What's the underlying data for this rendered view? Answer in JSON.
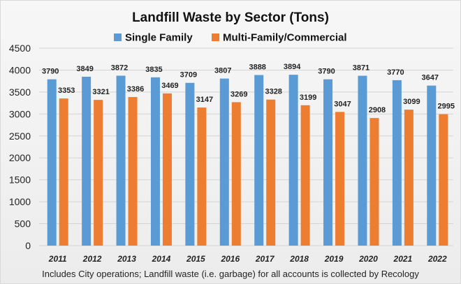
{
  "chart_data": {
    "type": "bar",
    "title": "Landfill Waste by Sector (Tons)",
    "categories": [
      "2011",
      "2012",
      "2013",
      "2014",
      "2015",
      "2016",
      "2017",
      "2018",
      "2019",
      "2020",
      "2021",
      "2022"
    ],
    "series": [
      {
        "name": "Single Family",
        "color": "#5b9bd5",
        "values": [
          3790,
          3849,
          3872,
          3835,
          3709,
          3807,
          3888,
          3894,
          3790,
          3871,
          3770,
          3647
        ]
      },
      {
        "name": "Multi-Family/Commercial",
        "color": "#ed7d31",
        "values": [
          3353,
          3321,
          3386,
          3469,
          3147,
          3269,
          3328,
          3199,
          3047,
          2908,
          3099,
          2995
        ]
      }
    ],
    "ylim": [
      0,
      4500
    ],
    "yticks": [
      0,
      500,
      1000,
      1500,
      2000,
      2500,
      3000,
      3500,
      4000,
      4500
    ],
    "grid": true,
    "legend_position": "top-center",
    "footnote": "Includes City operations; Landfill waste (i.e. garbage) for all accounts is collected by Recology"
  }
}
